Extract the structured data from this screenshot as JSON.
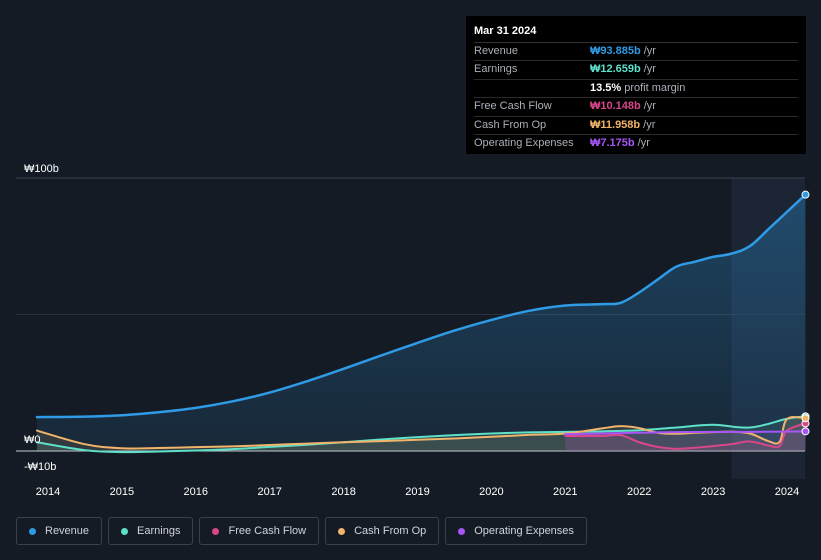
{
  "tooltip": {
    "date": "Mar 31 2024",
    "rows": [
      {
        "label": "Revenue",
        "value": "₩93.885b",
        "unit": "/yr",
        "color": "#2f9be6"
      },
      {
        "label": "Earnings",
        "value": "₩12.659b",
        "unit": "/yr",
        "color": "#5fe0c8"
      },
      {
        "label": "",
        "value": "13.5%",
        "unit": "profit margin",
        "color": "#ffffff"
      },
      {
        "label": "Free Cash Flow",
        "value": "₩10.148b",
        "unit": "/yr",
        "color": "#d9468a"
      },
      {
        "label": "Cash From Op",
        "value": "₩11.958b",
        "unit": "/yr",
        "color": "#f0b46a"
      },
      {
        "label": "Operating Expenses",
        "value": "₩7.175b",
        "unit": "/yr",
        "color": "#a855f7"
      }
    ]
  },
  "legend": [
    {
      "label": "Revenue",
      "color": "#2f9be6"
    },
    {
      "label": "Earnings",
      "color": "#5fe0c8"
    },
    {
      "label": "Free Cash Flow",
      "color": "#d9468a"
    },
    {
      "label": "Cash From Op",
      "color": "#f0b46a"
    },
    {
      "label": "Operating Expenses",
      "color": "#a855f7"
    }
  ],
  "chart_data": {
    "type": "line",
    "y_tick_labels": [
      "₩100b",
      "₩0",
      "-₩10b"
    ],
    "ylim": [
      -10,
      100
    ],
    "xlim": [
      2013.85,
      2024.25
    ],
    "x_tick_labels": [
      "2014",
      "2015",
      "2016",
      "2017",
      "2018",
      "2019",
      "2020",
      "2021",
      "2022",
      "2023",
      "2024"
    ],
    "highlight_start": 2023.25,
    "series": [
      {
        "name": "Revenue",
        "color": "#2f9be6",
        "x": [
          2013.85,
          2014.5,
          2015,
          2015.5,
          2016,
          2016.5,
          2017,
          2017.5,
          2018,
          2018.5,
          2019,
          2019.5,
          2020,
          2020.5,
          2021,
          2021.5,
          2021.75,
          2022,
          2022.25,
          2022.5,
          2022.75,
          2023,
          2023.25,
          2023.5,
          2023.75,
          2024,
          2024.25
        ],
        "y": [
          12.4,
          12.6,
          13.1,
          14.2,
          15.8,
          18.2,
          21.4,
          25.5,
          30.1,
          34.9,
          39.6,
          44.1,
          48.0,
          51.3,
          53.3,
          53.8,
          54.3,
          58.1,
          62.8,
          67.5,
          69.3,
          71.1,
          72.3,
          75.1,
          81.3,
          87.6,
          93.9
        ]
      },
      {
        "name": "Earnings",
        "color": "#5fe0c8",
        "x": [
          2013.85,
          2014.5,
          2015,
          2015.5,
          2016,
          2016.5,
          2017,
          2017.5,
          2018,
          2018.5,
          2019,
          2019.5,
          2020,
          2020.5,
          2021,
          2021.5,
          2022,
          2022.5,
          2023,
          2023.5,
          2024,
          2024.25
        ],
        "y": [
          3.2,
          0.3,
          -0.4,
          -0.2,
          0.2,
          0.7,
          1.5,
          2.3,
          3.2,
          4.2,
          5.1,
          5.8,
          6.4,
          6.8,
          7.0,
          7.2,
          7.6,
          8.6,
          9.6,
          8.6,
          11.8,
          12.7
        ]
      },
      {
        "name": "Free Cash Flow",
        "color": "#d9468a",
        "x": [
          2021,
          2021.5,
          2021.75,
          2022,
          2022.25,
          2022.5,
          2022.75,
          2023,
          2023.25,
          2023.5,
          2023.75,
          2023.9,
          2024,
          2024.25
        ],
        "y": [
          5.5,
          5.5,
          5.8,
          3.2,
          1.5,
          0.8,
          1.2,
          1.8,
          2.5,
          3.5,
          2.0,
          1.8,
          7.5,
          10.1
        ]
      },
      {
        "name": "Cash From Op",
        "color": "#f0b46a",
        "x": [
          2013.85,
          2014.5,
          2015,
          2015.5,
          2016,
          2016.5,
          2017,
          2017.5,
          2018,
          2018.5,
          2019,
          2019.5,
          2020,
          2020.5,
          2021,
          2021.5,
          2021.75,
          2022,
          2022.25,
          2022.5,
          2022.75,
          2023,
          2023.25,
          2023.5,
          2023.75,
          2023.9,
          2024,
          2024.25
        ],
        "y": [
          7.5,
          2.5,
          1.0,
          1.1,
          1.4,
          1.7,
          2.2,
          2.7,
          3.2,
          3.6,
          4.1,
          4.6,
          5.2,
          5.9,
          6.4,
          8.3,
          9.1,
          8.4,
          6.7,
          6.3,
          6.7,
          6.9,
          7.1,
          6.4,
          3.6,
          3.4,
          11.7,
          12.0
        ]
      },
      {
        "name": "Operating Expenses",
        "color": "#a855f7",
        "x": [
          2021,
          2021.5,
          2022,
          2022.5,
          2023,
          2023.5,
          2024,
          2024.25
        ],
        "y": [
          6.2,
          6.4,
          6.7,
          6.9,
          7.0,
          7.0,
          7.1,
          7.2
        ]
      }
    ]
  }
}
